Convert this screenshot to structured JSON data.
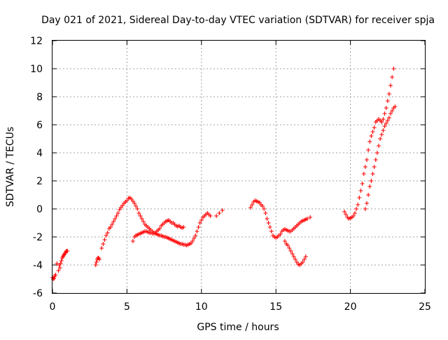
{
  "chart_data": {
    "type": "scatter",
    "title": "Day 021 of 2021, Sidereal Day-to-day VTEC variation (SDTVAR) for receiver spja",
    "xlabel": "GPS time / hours",
    "ylabel": "SDTVAR / TECUs",
    "xlim": [
      0,
      25
    ],
    "ylim": [
      -6,
      12
    ],
    "xticks": [
      0,
      5,
      10,
      15,
      20,
      25
    ],
    "yticks": [
      -6,
      -4,
      -2,
      0,
      2,
      4,
      6,
      8,
      10,
      12
    ],
    "grid": true,
    "marker": "+",
    "color": "#ff0000",
    "series": [
      {
        "name": "SDTVAR",
        "x": [
          0.0,
          0.05,
          0.1,
          0.15,
          0.2,
          0.3,
          0.4,
          0.45,
          0.5,
          0.55,
          0.6,
          0.65,
          0.7,
          0.75,
          0.8,
          0.85,
          0.9,
          0.95,
          1.0,
          2.9,
          2.95,
          3.0,
          3.05,
          3.1,
          3.15,
          3.3,
          3.4,
          3.5,
          3.6,
          3.7,
          3.8,
          3.9,
          4.0,
          4.1,
          4.2,
          4.3,
          4.4,
          4.5,
          4.6,
          4.7,
          4.8,
          4.9,
          5.0,
          5.1,
          5.2,
          5.3,
          5.4,
          5.5,
          5.6,
          5.7,
          5.8,
          5.9,
          6.0,
          6.1,
          6.2,
          6.3,
          6.4,
          6.5,
          6.6,
          6.7,
          6.8,
          6.9,
          7.0,
          7.1,
          7.2,
          7.3,
          7.4,
          7.5,
          7.6,
          7.7,
          7.8,
          7.9,
          8.0,
          8.1,
          8.2,
          8.3,
          8.4,
          8.5,
          8.6,
          8.7,
          8.8,
          8.9,
          9.0,
          9.1,
          9.2,
          9.3,
          9.4,
          9.5,
          9.6,
          9.7,
          9.8,
          9.9,
          10.0,
          10.1,
          10.2,
          10.3,
          10.4,
          10.5,
          10.6,
          11.0,
          11.2,
          11.4,
          5.4,
          5.5,
          5.6,
          5.7,
          5.8,
          5.9,
          6.0,
          6.1,
          6.2,
          6.3,
          6.4,
          6.5,
          6.6,
          6.7,
          6.8,
          6.9,
          7.0,
          7.1,
          7.2,
          7.3,
          7.4,
          7.5,
          7.6,
          7.7,
          7.8,
          7.9,
          8.0,
          8.1,
          8.2,
          8.3,
          8.4,
          8.5,
          8.6,
          8.7,
          8.8,
          13.3,
          13.4,
          13.5,
          13.6,
          13.7,
          13.8,
          13.9,
          14.0,
          14.1,
          14.2,
          14.3,
          14.4,
          14.5,
          14.6,
          14.7,
          14.8,
          14.9,
          15.0,
          15.1,
          15.2,
          15.3,
          15.4,
          15.5,
          15.6,
          15.7,
          15.8,
          15.9,
          16.0,
          16.1,
          16.2,
          16.3,
          16.4,
          16.5,
          16.6,
          16.7,
          16.8,
          16.9,
          17.0,
          17.1,
          17.3,
          15.6,
          15.7,
          15.8,
          15.9,
          16.0,
          16.1,
          16.2,
          16.3,
          16.4,
          16.5,
          16.6,
          16.7,
          16.8,
          16.9,
          17.0,
          19.6,
          19.7,
          19.8,
          19.9,
          20.0,
          20.1,
          20.2,
          20.3,
          20.4,
          20.5,
          20.6,
          20.7,
          20.8,
          20.9,
          21.0,
          21.1,
          21.2,
          21.3,
          21.4,
          21.5,
          21.6,
          21.7,
          21.8,
          21.9,
          22.0,
          22.1,
          22.2,
          22.3,
          22.4,
          22.5,
          22.6,
          22.7,
          22.8,
          22.9,
          21.0,
          21.1,
          21.2,
          21.3,
          21.4,
          21.5,
          21.6,
          21.7,
          21.8,
          21.9,
          22.0,
          22.1,
          22.2,
          22.3,
          22.4,
          22.5,
          22.6,
          22.7,
          22.8,
          22.9,
          23.0
        ],
        "y": [
          -4.9,
          -5.0,
          -4.95,
          -4.8,
          -4.7,
          -3.9,
          -4.4,
          -4.0,
          -4.2,
          -3.9,
          -3.7,
          -3.5,
          -3.4,
          -3.3,
          -3.25,
          -3.15,
          -3.05,
          -3.0,
          -3.0,
          -4.0,
          -3.8,
          -3.6,
          -3.5,
          -3.5,
          -3.6,
          -2.8,
          -2.5,
          -2.2,
          -1.9,
          -1.7,
          -1.4,
          -1.3,
          -1.1,
          -0.9,
          -0.7,
          -0.5,
          -0.3,
          -0.05,
          0.1,
          0.25,
          0.4,
          0.5,
          0.6,
          0.75,
          0.8,
          0.7,
          0.55,
          0.4,
          0.2,
          0.0,
          -0.3,
          -0.5,
          -0.7,
          -0.9,
          -1.1,
          -1.2,
          -1.3,
          -1.4,
          -1.5,
          -1.6,
          -1.7,
          -1.75,
          -1.8,
          -1.85,
          -1.9,
          -1.9,
          -1.95,
          -2.0,
          -2.0,
          -2.05,
          -2.1,
          -2.15,
          -2.2,
          -2.25,
          -2.3,
          -2.35,
          -2.4,
          -2.45,
          -2.5,
          -2.5,
          -2.55,
          -2.55,
          -2.6,
          -2.55,
          -2.5,
          -2.45,
          -2.3,
          -2.1,
          -1.9,
          -1.6,
          -1.3,
          -1.0,
          -0.8,
          -0.6,
          -0.5,
          -0.4,
          -0.3,
          -0.4,
          -0.5,
          -0.5,
          -0.3,
          -0.1,
          -2.3,
          -2.0,
          -1.9,
          -1.85,
          -1.8,
          -1.75,
          -1.7,
          -1.65,
          -1.6,
          -1.6,
          -1.65,
          -1.7,
          -1.7,
          -1.75,
          -1.75,
          -1.7,
          -1.6,
          -1.5,
          -1.4,
          -1.2,
          -1.1,
          -1.0,
          -0.9,
          -0.85,
          -0.8,
          -0.9,
          -1.0,
          -1.0,
          -1.1,
          -1.2,
          -1.25,
          -1.2,
          -1.3,
          -1.35,
          -1.3,
          0.1,
          0.3,
          0.5,
          0.6,
          0.55,
          0.5,
          0.45,
          0.3,
          0.2,
          0.0,
          -0.3,
          -0.7,
          -1.0,
          -1.3,
          -1.6,
          -1.9,
          -2.0,
          -2.05,
          -2.0,
          -1.9,
          -1.8,
          -1.6,
          -1.5,
          -1.45,
          -1.5,
          -1.55,
          -1.6,
          -1.6,
          -1.5,
          -1.4,
          -1.3,
          -1.2,
          -1.1,
          -1.0,
          -0.9,
          -0.85,
          -0.8,
          -0.75,
          -0.7,
          -0.6,
          -2.3,
          -2.5,
          -2.6,
          -2.8,
          -3.0,
          -3.2,
          -3.4,
          -3.6,
          -3.8,
          -3.95,
          -4.0,
          -3.9,
          -3.8,
          -3.6,
          -3.4,
          -0.2,
          -0.4,
          -0.6,
          -0.7,
          -0.65,
          -0.6,
          -0.5,
          -0.3,
          0.0,
          0.3,
          0.8,
          1.3,
          1.8,
          2.5,
          3.0,
          3.5,
          4.2,
          4.8,
          5.2,
          5.5,
          5.8,
          6.2,
          6.3,
          6.4,
          6.3,
          6.2,
          6.4,
          6.8,
          7.2,
          7.7,
          8.2,
          8.8,
          9.4,
          10.0,
          0.0,
          0.4,
          1.0,
          1.6,
          2.0,
          2.5,
          3.0,
          3.5,
          4.0,
          4.5,
          5.0,
          5.3,
          5.6,
          5.9,
          6.1,
          6.3,
          6.5,
          6.8,
          7.0,
          7.2,
          7.3
        ]
      }
    ]
  }
}
